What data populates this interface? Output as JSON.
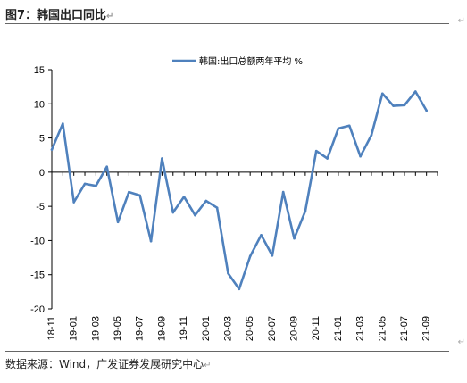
{
  "header": {
    "title": "图7：韩国出口同比",
    "return_mark": "↵"
  },
  "footer": {
    "source": "数据来源：Wind，广发证券发展研究中心",
    "return_mark": "↵"
  },
  "edge_marks": {
    "top": "↵",
    "bottom": "↵"
  },
  "chart_data": {
    "type": "line",
    "title": "",
    "xlabel": "",
    "ylabel": "",
    "ylim": [
      -20,
      15
    ],
    "yticks": [
      15,
      10,
      5,
      0,
      -5,
      -10,
      -15,
      -20
    ],
    "legend_position": "top-center",
    "grid": false,
    "x": [
      "18-11",
      "18-12",
      "19-01",
      "19-02",
      "19-03",
      "19-04",
      "19-05",
      "19-06",
      "19-07",
      "19-08",
      "19-09",
      "19-10",
      "19-11",
      "19-12",
      "20-01",
      "20-02",
      "20-03",
      "20-04",
      "20-05",
      "20-06",
      "20-07",
      "20-08",
      "20-09",
      "20-10",
      "20-11",
      "20-12",
      "21-01",
      "21-02",
      "21-03",
      "21-04",
      "21-05",
      "21-06",
      "21-07",
      "21-08",
      "21-09",
      "21-10"
    ],
    "x_tick_labels": [
      "18-11",
      "19-01",
      "19-03",
      "19-05",
      "19-07",
      "19-09",
      "19-11",
      "20-01",
      "20-03",
      "20-05",
      "20-07",
      "20-09",
      "20-11",
      "21-01",
      "21-03",
      "21-05",
      "21-07",
      "21-09"
    ],
    "series": [
      {
        "name": "韩国:出口总额两年平均 %",
        "color": "#4f81bd",
        "values": [
          3.3,
          7.1,
          -4.4,
          -1.7,
          -2.0,
          0.8,
          -7.3,
          -2.9,
          -3.4,
          -10.1,
          2.0,
          -5.9,
          -3.6,
          -6.3,
          -4.2,
          -5.2,
          -14.8,
          -17.1,
          -12.3,
          -9.2,
          -12.2,
          -2.9,
          -9.7,
          -5.7,
          3.1,
          2.0,
          6.4,
          6.8,
          2.3,
          5.4,
          11.5,
          9.7,
          9.8,
          11.8,
          9.0,
          null
        ]
      }
    ]
  }
}
